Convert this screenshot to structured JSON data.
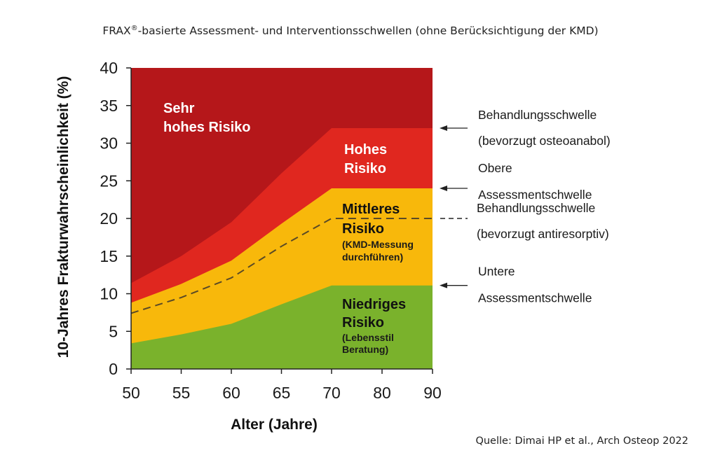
{
  "chart_data": {
    "type": "area",
    "title": "FRAX®-basierte Assessment- und Interventionsschwellen (ohne Berücksichtigung der KMD)",
    "title_main": "FRAX",
    "title_sup": "®",
    "title_rest": "-basierte Assessment- und Interventionsschwellen (ohne Berücksichtigung der KMD)",
    "xlabel": "Alter (Jahre)",
    "ylabel": "10-Jahres Frakturwahrscheinlichkeit (%)",
    "xlim": [
      50,
      90
    ],
    "ylim": [
      0,
      40
    ],
    "x_ticks": [
      50,
      55,
      60,
      65,
      70,
      80,
      90
    ],
    "y_ticks": [
      0,
      5,
      10,
      15,
      20,
      25,
      30,
      35,
      40
    ],
    "x": [
      50,
      55,
      60,
      65,
      70,
      80,
      90
    ],
    "series": [
      {
        "key": "lower",
        "values": [
          3.4,
          4.6,
          6.0,
          8.6,
          11.1,
          11.1,
          11.1
        ],
        "color": "#7ab22c"
      },
      {
        "key": "treatment_antiresorptive",
        "values": [
          7.4,
          9.5,
          12.1,
          16.3,
          20.0,
          20.0,
          20.0
        ],
        "dashed": true
      },
      {
        "key": "upper",
        "values": [
          8.8,
          11.3,
          14.4,
          19.3,
          24.0,
          24.0,
          24.0
        ],
        "color": "#f8b80b"
      },
      {
        "key": "treatment_anabolic",
        "values": [
          11.4,
          15.0,
          19.5,
          26.0,
          32.0,
          32.0,
          32.0
        ],
        "color": "#e0271f"
      }
    ],
    "top_color": "#b5171a",
    "zones": {
      "very_high": [
        "Sehr",
        "hohes Risiko"
      ],
      "high": [
        "Hohes",
        "Risiko"
      ],
      "medium": [
        "Mittleres",
        "Risiko"
      ],
      "medium_note": [
        "(KMD-Messung",
        "durchführen)"
      ],
      "low": [
        "Niedriges",
        "Risiko"
      ],
      "low_note": [
        "(Lebensstil",
        "Beratung)"
      ]
    },
    "annotations": [
      {
        "key": "anabolic",
        "lines": [
          "Behandlungsschwelle",
          "(bevorzugt osteoanabol)"
        ],
        "y": 32,
        "dashed": false
      },
      {
        "key": "upper",
        "lines": [
          "Obere",
          "Assessmentschwelle"
        ],
        "y": 24,
        "dashed": false
      },
      {
        "key": "antiresorptive",
        "lines": [
          "Behandlungsschwelle",
          "(bevorzugt antiresorptiv)"
        ],
        "y": 20,
        "dashed": true
      },
      {
        "key": "lower",
        "lines": [
          "Untere",
          "Assessmentschwelle"
        ],
        "y": 11.1,
        "dashed": false
      }
    ],
    "source": "Quelle: Dimai HP et al., Arch Osteop 2022"
  }
}
